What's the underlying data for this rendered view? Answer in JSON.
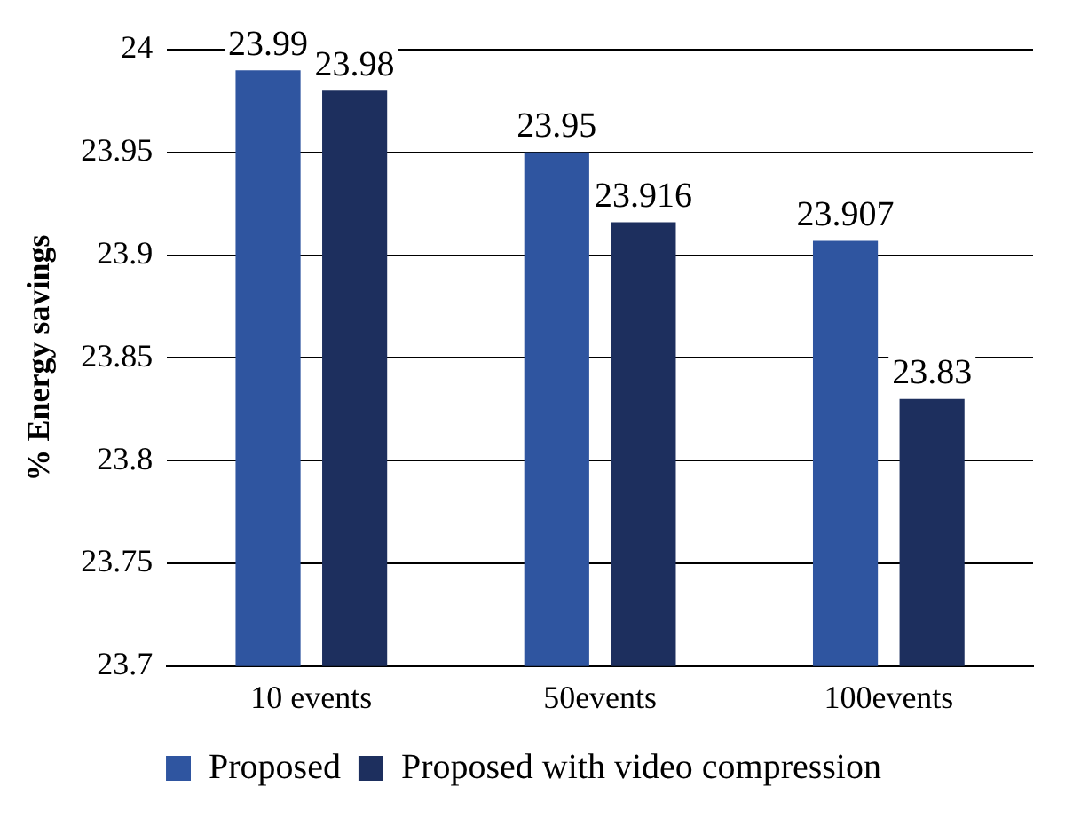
{
  "chart_data": {
    "type": "bar",
    "ylabel": "% Energy savings",
    "categories": [
      "10 events",
      "50events",
      "100events"
    ],
    "series": [
      {
        "name": "Proposed",
        "color": "#2f55a0",
        "values": [
          23.99,
          23.95,
          23.907
        ]
      },
      {
        "name": "Proposed with video compression",
        "color": "#1d2f5e",
        "values": [
          23.98,
          23.916,
          23.83
        ]
      }
    ],
    "ylim": [
      23.7,
      24
    ],
    "yticks": [
      23.7,
      23.75,
      23.8,
      23.85,
      23.9,
      23.95,
      24
    ],
    "grid": "y",
    "legend": "bottom",
    "data_labels": true
  }
}
